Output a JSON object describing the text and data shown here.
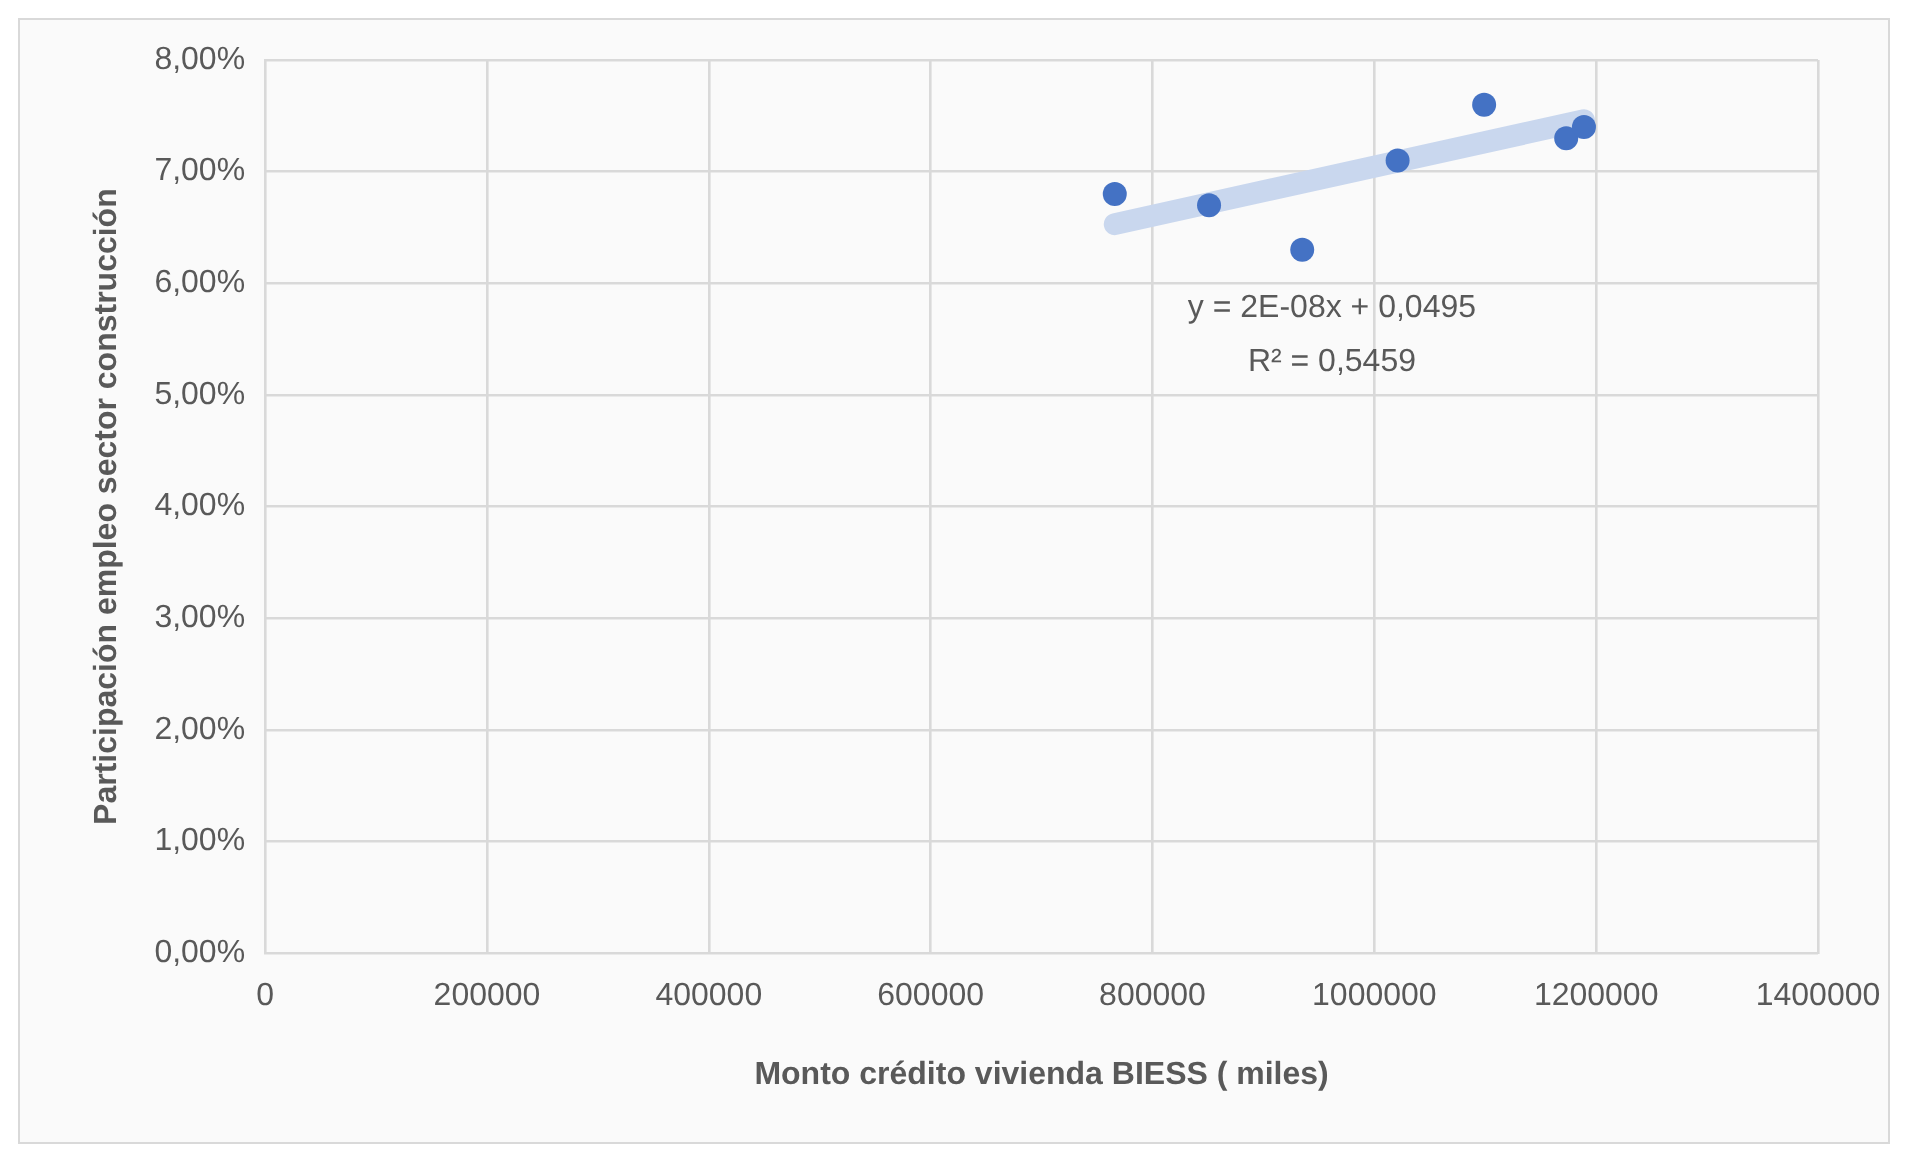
{
  "chart_data": {
    "type": "scatter",
    "xlabel": "Monto crédito vivienda BIESS ( miles)",
    "ylabel": "Participación empleo sector construcción",
    "series": [
      {
        "color": "#4472c4",
        "marker": "circle",
        "x": [
          766000,
          851000,
          935000,
          1021000,
          1099000,
          1173000,
          1189000
        ],
        "values": [
          6.8,
          6.7,
          6.3,
          7.1,
          7.6,
          7.3,
          7.4
        ]
      },
      {
        "type": "line",
        "color": "#c9d7ee",
        "marker": "none",
        "x": [
          766000,
          1189000
        ],
        "values": [
          6.53,
          7.46
        ]
      }
    ],
    "annotations": [
      "y = 2E-08x + 0,0495",
      "R² = 0,5459"
    ],
    "xlim": [
      0,
      1400000
    ],
    "xticks": [
      0,
      200000,
      400000,
      600000,
      800000,
      1000000,
      1200000,
      1400000
    ],
    "ylim": [
      0,
      8
    ],
    "yticks": [
      {
        "value": 0,
        "label": "0,00%"
      },
      {
        "value": 1,
        "label": "1,00%"
      },
      {
        "value": 2,
        "label": "2,00%"
      },
      {
        "value": 3,
        "label": "3,00%"
      },
      {
        "value": 4,
        "label": "4,00%"
      },
      {
        "value": 5,
        "label": "5,00%"
      },
      {
        "value": 6,
        "label": "6,00%"
      },
      {
        "value": 7,
        "label": "7,00%"
      },
      {
        "value": 8,
        "label": "8,00%"
      }
    ],
    "grid": true,
    "legend": false
  }
}
